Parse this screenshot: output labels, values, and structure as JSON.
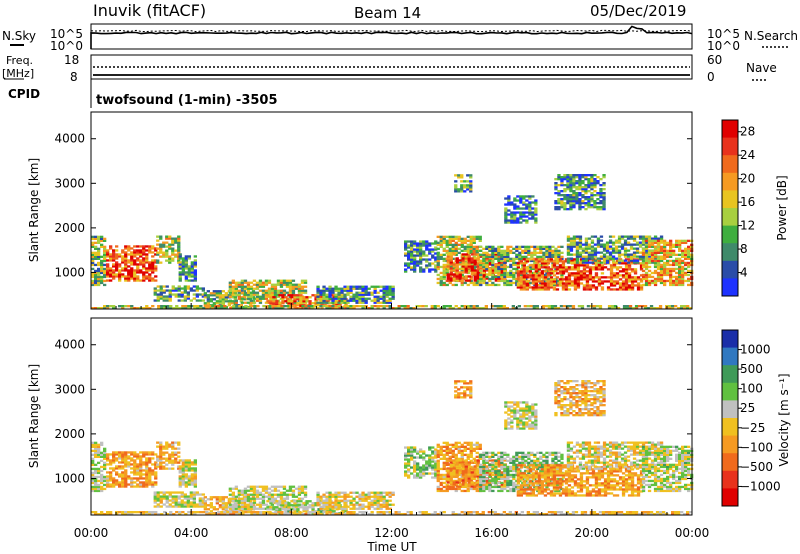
{
  "header": {
    "station": "Inuvik (fitACF)",
    "beam": "Beam 14",
    "date": "05/Dec/2019"
  },
  "noise_panel": {
    "left_label": "N.Sky",
    "left_ticks": [
      "10^5",
      "10^0"
    ],
    "right_label": "N.Search",
    "right_ticks": [
      "10^5",
      "10^0"
    ]
  },
  "freq_panel": {
    "left_label_1": "Freq.",
    "left_label_2": "[MHz]",
    "left_ticks": [
      "18",
      "8"
    ],
    "right_label": "Nave",
    "right_ticks": [
      "60",
      "0"
    ]
  },
  "cpid": {
    "label": "CPID",
    "text": "twofsound (1-min) -3505"
  },
  "x_axis": {
    "label": "Time UT",
    "ticks": [
      "00:00",
      "04:00",
      "08:00",
      "12:00",
      "16:00",
      "20:00",
      "00:00"
    ]
  },
  "chart_data": [
    {
      "type": "heatmap",
      "title": "",
      "xlabel": "Time UT",
      "ylabel": "Slant Range [km]",
      "x_range_hours": [
        0,
        24
      ],
      "ylim": [
        180,
        4600
      ],
      "y_ticks": [
        1000,
        2000,
        3000,
        4000
      ],
      "colorbar_label": "Power [dB]",
      "colorbar_ticks": [
        "4",
        "8",
        "12",
        "16",
        "20",
        "24",
        "28"
      ],
      "colorbar_range": [
        0,
        30
      ],
      "colors": [
        "#1e32ff",
        "#2a4ca8",
        "#3f8a6a",
        "#3fae3f",
        "#a8d040",
        "#e8c420",
        "#f59a22",
        "#f06a1c",
        "#e8321c",
        "#e00000"
      ],
      "regions": [
        {
          "t": [
            0.0,
            0.6
          ],
          "r": [
            700,
            1800
          ],
          "v": 12
        },
        {
          "t": [
            0.6,
            2.6
          ],
          "r": [
            800,
            1600
          ],
          "v": 24
        },
        {
          "t": [
            2.6,
            3.5
          ],
          "r": [
            1200,
            1800
          ],
          "v": 14
        },
        {
          "t": [
            3.5,
            4.2
          ],
          "r": [
            800,
            1400
          ],
          "v": 8
        },
        {
          "t": [
            2.5,
            4.5
          ],
          "r": [
            350,
            700
          ],
          "v": 10
        },
        {
          "t": [
            4.5,
            6.5
          ],
          "r": [
            200,
            600
          ],
          "v": 12
        },
        {
          "t": [
            5.5,
            8.5
          ],
          "r": [
            300,
            800
          ],
          "v": 14
        },
        {
          "t": [
            7.0,
            10.2
          ],
          "r": [
            200,
            500
          ],
          "v": 22
        },
        {
          "t": [
            9.0,
            12.0
          ],
          "r": [
            300,
            700
          ],
          "v": 8
        },
        {
          "t": [
            12.5,
            13.8
          ],
          "r": [
            1000,
            1700
          ],
          "v": 8
        },
        {
          "t": [
            13.8,
            15.5
          ],
          "r": [
            700,
            1800
          ],
          "v": 14
        },
        {
          "t": [
            14.2,
            16.5
          ],
          "r": [
            800,
            1400
          ],
          "v": 25
        },
        {
          "t": [
            15.5,
            18.8
          ],
          "r": [
            700,
            1600
          ],
          "v": 12
        },
        {
          "t": [
            17.0,
            22.0
          ],
          "r": [
            600,
            1300
          ],
          "v": 24
        },
        {
          "t": [
            19.0,
            22.8
          ],
          "r": [
            1200,
            1800
          ],
          "v": 10
        },
        {
          "t": [
            22.0,
            24.0
          ],
          "r": [
            700,
            1700
          ],
          "v": 18
        },
        {
          "t": [
            14.5,
            15.2
          ],
          "r": [
            2800,
            3200
          ],
          "v": 10
        },
        {
          "t": [
            18.5,
            20.5
          ],
          "r": [
            2400,
            3200
          ],
          "v": 8
        },
        {
          "t": [
            16.5,
            17.8
          ],
          "r": [
            2100,
            2700
          ],
          "v": 6
        },
        {
          "t": [
            0.0,
            24.0
          ],
          "r": [
            180,
            260
          ],
          "v": 14
        }
      ]
    },
    {
      "type": "heatmap",
      "title": "",
      "xlabel": "Time UT",
      "ylabel": "Slant Range [km]",
      "x_range_hours": [
        0,
        24
      ],
      "ylim": [
        180,
        4600
      ],
      "y_ticks": [
        1000,
        2000,
        3000,
        4000
      ],
      "colorbar_label": "Velocity [m s⁻¹]",
      "colorbar_ticks": [
        "1000",
        "500",
        "100",
        "25",
        "−25",
        "−100",
        "−500",
        "−1000"
      ],
      "colorbar_range": [
        -1200,
        1200
      ],
      "colors": [
        "#1a2ea8",
        "#3078c0",
        "#3f9a58",
        "#60c040",
        "#c0c0c0",
        "#f0c020",
        "#f59a22",
        "#f06a1c",
        "#e8321c",
        "#e00000"
      ],
      "regions": [
        {
          "t": [
            0.0,
            0.6
          ],
          "r": [
            700,
            1800
          ],
          "v": 100
        },
        {
          "t": [
            0.6,
            2.6
          ],
          "r": [
            800,
            1600
          ],
          "v": -300
        },
        {
          "t": [
            2.6,
            3.5
          ],
          "r": [
            1200,
            1800
          ],
          "v": -200
        },
        {
          "t": [
            3.5,
            4.2
          ],
          "r": [
            800,
            1400
          ],
          "v": 50
        },
        {
          "t": [
            2.5,
            4.5
          ],
          "r": [
            350,
            700
          ],
          "v": 100
        },
        {
          "t": [
            4.5,
            6.5
          ],
          "r": [
            200,
            600
          ],
          "v": -150
        },
        {
          "t": [
            5.5,
            8.5
          ],
          "r": [
            300,
            800
          ],
          "v": 100
        },
        {
          "t": [
            7.0,
            10.2
          ],
          "r": [
            200,
            500
          ],
          "v": 150
        },
        {
          "t": [
            9.0,
            12.0
          ],
          "r": [
            300,
            700
          ],
          "v": -50
        },
        {
          "t": [
            12.5,
            13.8
          ],
          "r": [
            1000,
            1700
          ],
          "v": 200
        },
        {
          "t": [
            13.8,
            15.5
          ],
          "r": [
            700,
            1800
          ],
          "v": -300
        },
        {
          "t": [
            14.2,
            16.5
          ],
          "r": [
            800,
            1400
          ],
          "v": -400
        },
        {
          "t": [
            15.5,
            18.8
          ],
          "r": [
            700,
            1600
          ],
          "v": 300
        },
        {
          "t": [
            17.0,
            22.0
          ],
          "r": [
            600,
            1300
          ],
          "v": -350
        },
        {
          "t": [
            19.0,
            22.8
          ],
          "r": [
            1200,
            1800
          ],
          "v": 0
        },
        {
          "t": [
            22.0,
            24.0
          ],
          "r": [
            700,
            1700
          ],
          "v": 150
        },
        {
          "t": [
            14.5,
            15.2
          ],
          "r": [
            2800,
            3200
          ],
          "v": -300
        },
        {
          "t": [
            18.5,
            20.5
          ],
          "r": [
            2400,
            3200
          ],
          "v": -200
        },
        {
          "t": [
            16.5,
            17.8
          ],
          "r": [
            2100,
            2700
          ],
          "v": 100
        },
        {
          "t": [
            0.0,
            24.0
          ],
          "r": [
            180,
            260
          ],
          "v": -150
        }
      ]
    }
  ]
}
